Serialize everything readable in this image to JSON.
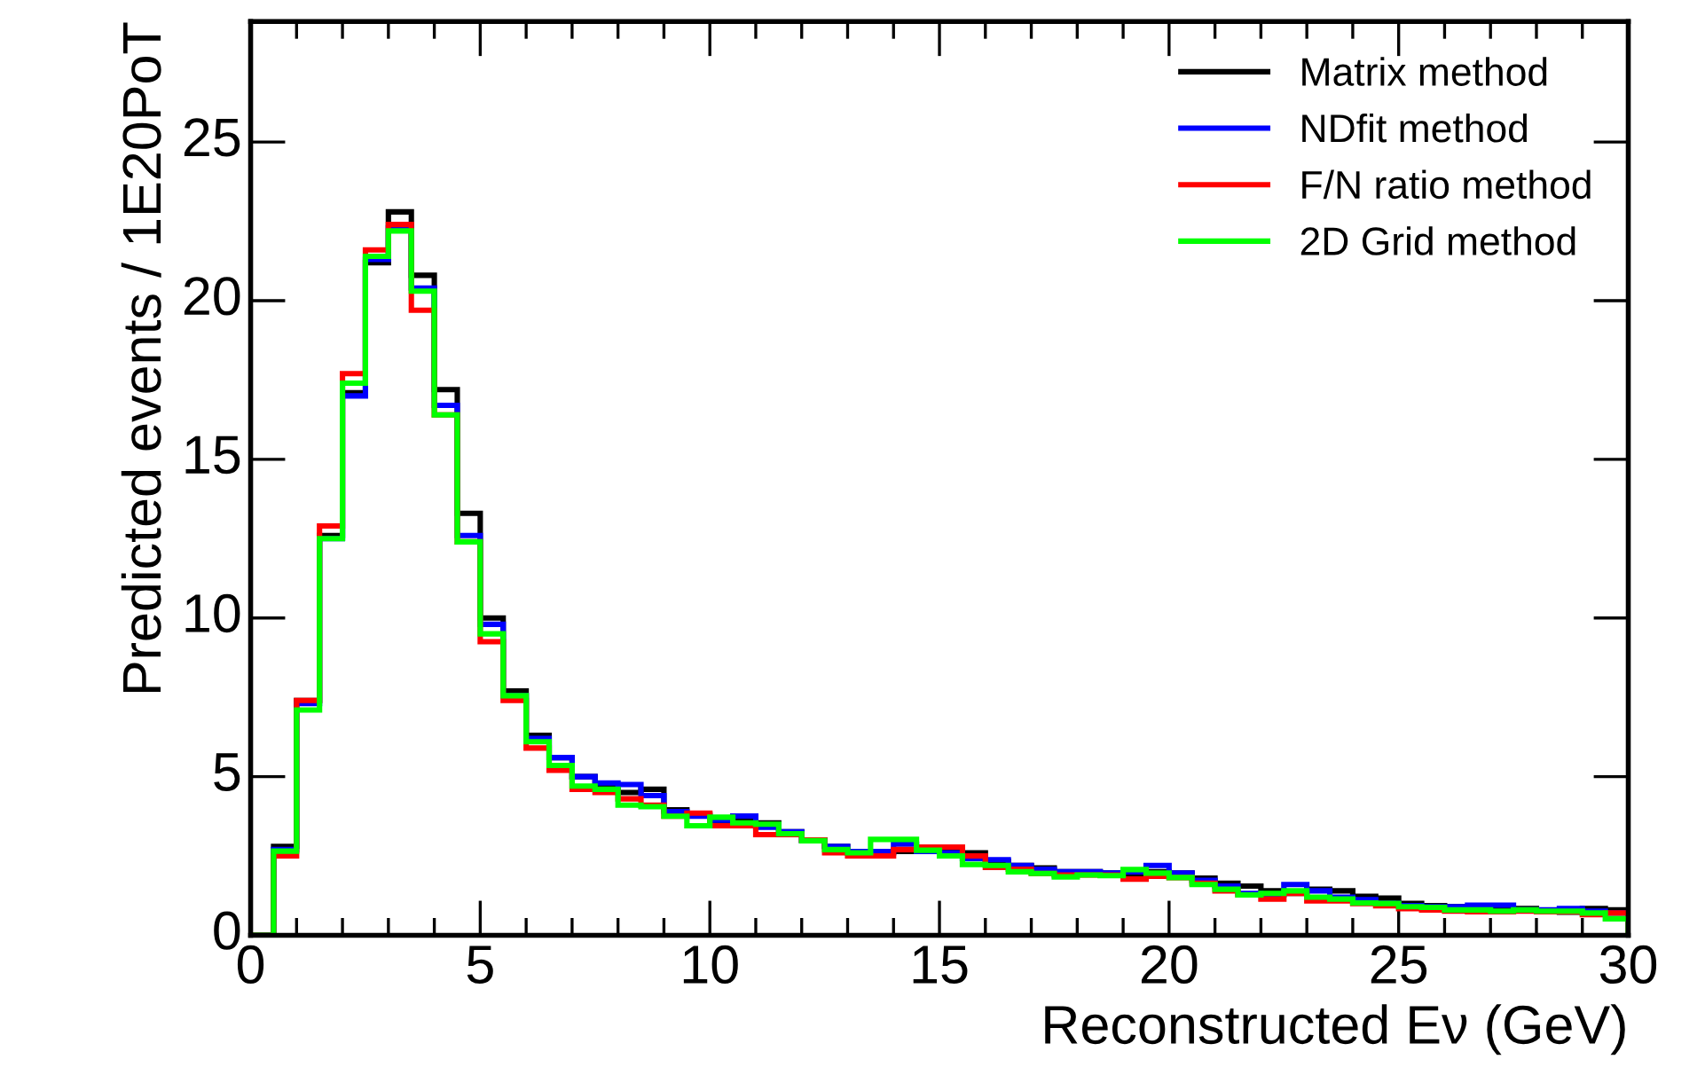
{
  "chart_data": {
    "type": "histogram",
    "xlabel": "Reconstructed Eν (GeV)",
    "ylabel": "Predicted events / 1E20PoT",
    "bins": [
      0,
      0.5,
      1,
      1.5,
      2,
      2.5,
      3,
      3.5,
      4,
      4.5,
      5,
      5.5,
      6,
      6.5,
      7,
      7.5,
      8,
      8.5,
      9,
      9.5,
      10,
      10.5,
      11,
      11.5,
      12,
      12.5,
      13,
      13.5,
      14,
      14.5,
      15,
      15.5,
      16,
      16.5,
      17,
      17.5,
      18,
      18.5,
      19,
      19.5,
      20,
      20.5,
      21,
      21.5,
      22,
      22.5,
      23,
      23.5,
      24,
      24.5,
      25,
      25.5,
      26,
      26.5,
      27,
      27.5,
      28,
      28.5,
      29,
      29.5,
      30
    ],
    "series": [
      {
        "name": "Matrix method",
        "color": "#000000",
        "values": [
          0,
          2.8,
          7.4,
          12.6,
          17.1,
          21.2,
          22.8,
          20.8,
          17.2,
          13.3,
          10.0,
          7.7,
          6.3,
          5.6,
          5.0,
          4.7,
          4.5,
          4.6,
          3.95,
          3.8,
          3.5,
          3.63,
          3.54,
          3.26,
          3.0,
          2.8,
          2.6,
          2.6,
          2.64,
          2.74,
          2.68,
          2.6,
          2.33,
          2.2,
          2.12,
          2.0,
          2.0,
          1.96,
          1.92,
          2.0,
          1.96,
          1.8,
          1.64,
          1.55,
          1.4,
          1.32,
          1.45,
          1.4,
          1.23,
          1.17,
          1.0,
          0.93,
          0.9,
          0.8,
          0.84,
          0.84,
          0.76,
          0.73,
          0.84,
          0.8
        ]
      },
      {
        "name": "NDfit method",
        "color": "#0000ff",
        "values": [
          0,
          2.7,
          7.3,
          12.5,
          17.0,
          21.3,
          22.3,
          20.4,
          16.7,
          12.6,
          9.8,
          7.55,
          6.2,
          5.6,
          5.0,
          4.8,
          4.75,
          4.4,
          3.9,
          3.75,
          3.63,
          3.76,
          3.4,
          3.26,
          2.98,
          2.8,
          2.64,
          2.64,
          2.87,
          2.64,
          2.6,
          2.42,
          2.38,
          2.2,
          2.08,
          2.0,
          2.0,
          1.96,
          2.0,
          2.2,
          1.96,
          1.73,
          1.55,
          1.32,
          1.27,
          1.6,
          1.4,
          1.2,
          1.12,
          1.0,
          0.93,
          0.9,
          0.9,
          0.95,
          0.95,
          0.8,
          0.8,
          0.84,
          0.76,
          0.7
        ]
      },
      {
        "name": "F/N ratio method",
        "color": "#ff0000",
        "values": [
          0,
          2.5,
          7.4,
          12.9,
          17.7,
          21.6,
          22.4,
          19.7,
          16.4,
          12.4,
          9.25,
          7.4,
          5.9,
          5.2,
          4.6,
          4.5,
          4.3,
          4.1,
          3.75,
          3.85,
          3.45,
          3.45,
          3.17,
          3.17,
          3.0,
          2.6,
          2.5,
          2.5,
          2.7,
          2.78,
          2.78,
          2.5,
          2.14,
          2.08,
          1.95,
          1.9,
          1.9,
          1.9,
          1.77,
          1.86,
          1.82,
          1.64,
          1.4,
          1.27,
          1.14,
          1.32,
          1.08,
          1.08,
          1.0,
          0.93,
          0.84,
          0.8,
          0.76,
          0.74,
          0.74,
          0.76,
          0.74,
          0.74,
          0.65,
          0.7
        ]
      },
      {
        "name": "2D Grid method",
        "color": "#00ff00",
        "values": [
          0,
          2.65,
          7.1,
          12.5,
          17.4,
          21.4,
          22.2,
          20.3,
          16.4,
          12.4,
          9.5,
          7.55,
          6.1,
          5.35,
          4.7,
          4.6,
          4.1,
          4.05,
          3.75,
          3.45,
          3.72,
          3.54,
          3.5,
          3.2,
          2.98,
          2.7,
          2.6,
          3.02,
          3.02,
          2.68,
          2.5,
          2.23,
          2.2,
          2.0,
          1.95,
          1.84,
          1.9,
          1.88,
          2.07,
          1.96,
          1.82,
          1.6,
          1.45,
          1.27,
          1.32,
          1.4,
          1.2,
          1.14,
          1.02,
          1.0,
          0.9,
          0.88,
          0.8,
          0.8,
          0.76,
          0.8,
          0.76,
          0.76,
          0.7,
          0.52
        ]
      }
    ],
    "xlim": [
      0,
      30
    ],
    "ylim": [
      0,
      28.8
    ],
    "xticks": [
      0,
      5,
      10,
      15,
      20,
      25,
      30
    ],
    "yticks": [
      0,
      5,
      10,
      15,
      20,
      25
    ],
    "legend": "top right",
    "grid": false
  }
}
